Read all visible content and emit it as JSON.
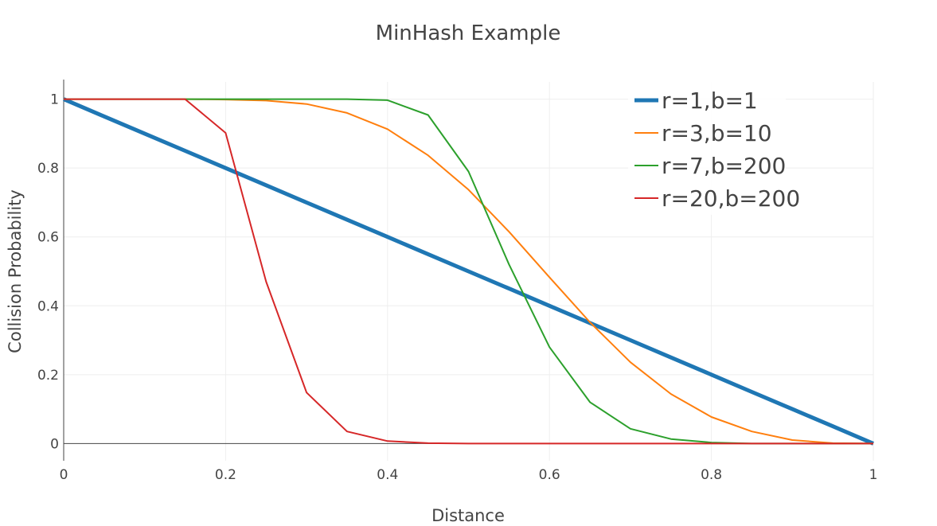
{
  "chart_data": {
    "type": "line",
    "title": "MinHash Example",
    "xlabel": "Distance",
    "ylabel": "Collision Probability",
    "xlim": [
      0,
      1
    ],
    "ylim": [
      -0.05,
      1.05
    ],
    "xticks": [
      0,
      0.2,
      0.4,
      0.6,
      0.8,
      1
    ],
    "xtick_labels": [
      "0",
      "0.2",
      "0.4",
      "0.6",
      "0.8",
      "1"
    ],
    "yticks": [
      0,
      0.2,
      0.4,
      0.6,
      0.8,
      1
    ],
    "ytick_labels": [
      "0",
      "0.2",
      "0.4",
      "0.6",
      "0.8",
      "1"
    ],
    "grid": true,
    "legend_position": "top-right",
    "x": [
      0,
      0.05,
      0.1,
      0.15,
      0.2,
      0.25,
      0.3,
      0.35,
      0.4,
      0.45,
      0.5,
      0.55,
      0.6,
      0.65,
      0.7,
      0.75,
      0.8,
      0.85,
      0.9,
      0.95,
      1
    ],
    "series": [
      {
        "name": "r=1,b=1",
        "color": "#1f77b4",
        "width": "thick",
        "values": [
          1,
          0.95,
          0.9,
          0.85,
          0.8,
          0.75,
          0.7,
          0.65,
          0.6,
          0.55,
          0.5,
          0.45,
          0.4,
          0.35,
          0.3,
          0.25,
          0.2,
          0.15,
          0.1,
          0.05,
          0
        ]
      },
      {
        "name": "r=3,b=10",
        "color": "#ff7f0e",
        "width": "thin",
        "values": [
          1,
          1,
          1,
          1,
          0.999,
          0.996,
          0.986,
          0.96,
          0.913,
          0.837,
          0.737,
          0.615,
          0.483,
          0.352,
          0.236,
          0.144,
          0.077,
          0.035,
          0.01,
          0.001,
          0
        ]
      },
      {
        "name": "r=7,b=200",
        "color": "#2ca02c",
        "width": "thin",
        "values": [
          1,
          1,
          1,
          1,
          1,
          1,
          1,
          1,
          0.997,
          0.954,
          0.79,
          0.52,
          0.28,
          0.12,
          0.043,
          0.013,
          0.003,
          0,
          0,
          0,
          0
        ]
      },
      {
        "name": "r=20,b=200",
        "color": "#d62728",
        "width": "thin",
        "values": [
          1,
          1,
          1,
          1,
          0.902,
          0.47,
          0.148,
          0.035,
          0.007,
          0.001,
          0,
          0,
          0,
          0,
          0,
          0,
          0,
          0,
          0,
          0,
          0
        ]
      }
    ]
  }
}
